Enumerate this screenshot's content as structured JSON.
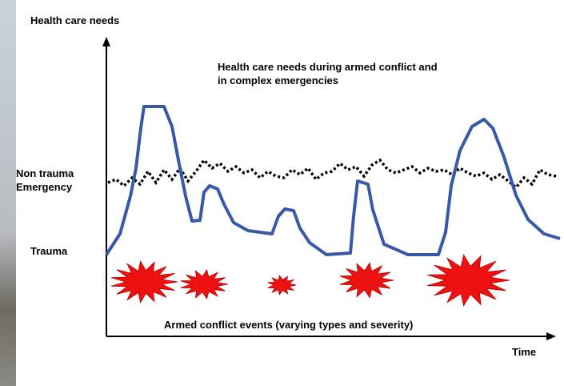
{
  "y_axis_label": "Health care needs",
  "title": {
    "line1": "Health care  needs during armed conflict and",
    "line2": "in complex emergencies"
  },
  "levels": {
    "non_trauma": {
      "line1": "Non trauma",
      "line2": "Emergency"
    },
    "trauma": "Trauma"
  },
  "events_label": "Armed conflict events (varying types and severity)",
  "x_axis_label": "Time"
}
